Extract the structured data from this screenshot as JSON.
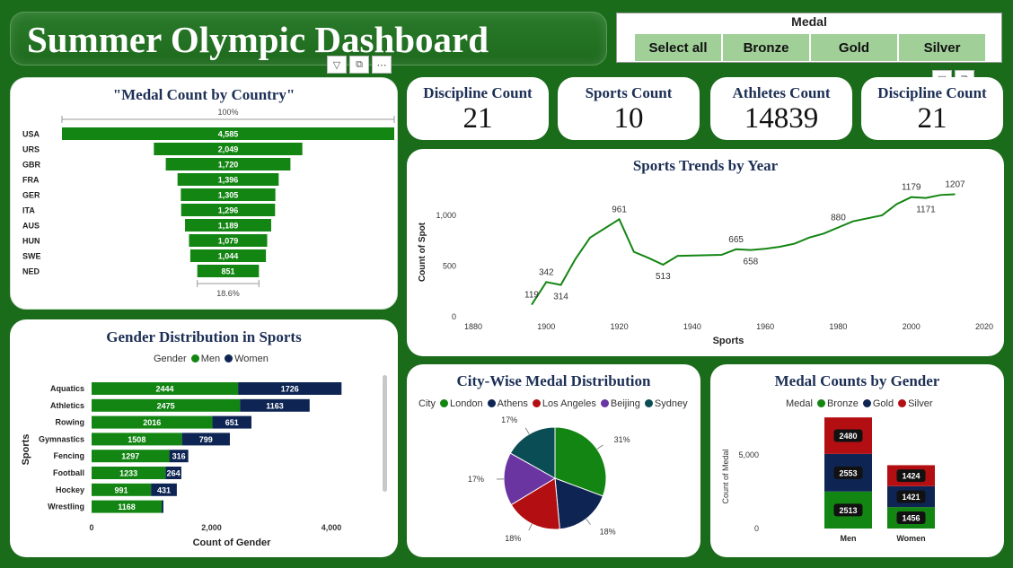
{
  "title": "Summer Olympic Dashboard",
  "slicer": {
    "title": "Medal",
    "options": [
      "Select all",
      "Bronze",
      "Gold",
      "Silver"
    ]
  },
  "kpis": [
    {
      "label": "Discipline Count",
      "value": "21"
    },
    {
      "label": "Sports Count",
      "value": "10"
    },
    {
      "label": "Athletes Count",
      "value": "14839"
    },
    {
      "label": "Discipline Count",
      "value": "21"
    }
  ],
  "colors": {
    "green": "#138513",
    "navy": "#0e2554",
    "red": "#b30f12",
    "purple": "#6a35a0",
    "teal": "#0b4d55"
  },
  "chart_data": [
    {
      "id": "funnel",
      "type": "bar",
      "title": "\"Medal Count by Country\"",
      "top_label": "100%",
      "bottom_label": "18.6%",
      "categories": [
        "USA",
        "URS",
        "GBR",
        "FRA",
        "GER",
        "ITA",
        "AUS",
        "HUN",
        "SWE",
        "NED"
      ],
      "values": [
        4585,
        2049,
        1720,
        1396,
        1305,
        1296,
        1189,
        1079,
        1044,
        851
      ],
      "value_labels": [
        "4,585",
        "2,049",
        "1,720",
        "1,396",
        "1,305",
        "1,296",
        "1,189",
        "1,079",
        "1,044",
        "851"
      ]
    },
    {
      "id": "trend",
      "type": "line",
      "title": "Sports Trends by Year",
      "xlabel": "Sports",
      "ylabel": "Count of Spot",
      "xlim": [
        1880,
        2020
      ],
      "ylim": [
        0,
        1300
      ],
      "xticks": [
        1880,
        1900,
        1920,
        1940,
        1960,
        1980,
        2000,
        2020
      ],
      "yticks": [
        0,
        500,
        1000
      ],
      "ytick_labels": [
        "0",
        "500",
        "1,000"
      ],
      "x": [
        1896,
        1900,
        1904,
        1908,
        1912,
        1920,
        1924,
        1928,
        1932,
        1936,
        1948,
        1952,
        1956,
        1960,
        1964,
        1968,
        1972,
        1976,
        1980,
        1984,
        1988,
        1992,
        1996,
        2000,
        2004,
        2008,
        2012
      ],
      "y": [
        119,
        342,
        314,
        570,
        780,
        961,
        640,
        580,
        513,
        600,
        610,
        665,
        658,
        670,
        690,
        720,
        780,
        820,
        880,
        940,
        970,
        1000,
        1110,
        1179,
        1171,
        1200,
        1207
      ],
      "annotations": [
        {
          "x": 1896,
          "y": 119,
          "label": "119"
        },
        {
          "x": 1900,
          "y": 342,
          "label": "342"
        },
        {
          "x": 1904,
          "y": 314,
          "label": "314"
        },
        {
          "x": 1920,
          "y": 961,
          "label": "961"
        },
        {
          "x": 1932,
          "y": 513,
          "label": "513"
        },
        {
          "x": 1952,
          "y": 665,
          "label": "665"
        },
        {
          "x": 1956,
          "y": 658,
          "label": "658"
        },
        {
          "x": 1980,
          "y": 880,
          "label": "880"
        },
        {
          "x": 2000,
          "y": 1179,
          "label": "1179"
        },
        {
          "x": 2004,
          "y": 1171,
          "label": "1171"
        },
        {
          "x": 2012,
          "y": 1207,
          "label": "1207"
        }
      ]
    },
    {
      "id": "gender",
      "type": "bar",
      "stacked": true,
      "orientation": "horizontal",
      "title": "Gender Distribution in Sports",
      "legend_title": "Gender",
      "xlabel": "Count of Gender",
      "ylabel": "Sports",
      "xlim": [
        0,
        4600
      ],
      "xticks": [
        0,
        2000,
        4000
      ],
      "xtick_labels": [
        "0",
        "2,000",
        "4,000"
      ],
      "categories": [
        "Aquatics",
        "Athletics",
        "Rowing",
        "Gymnastics",
        "Fencing",
        "Football",
        "Hockey",
        "Wrestling"
      ],
      "series": [
        {
          "name": "Men",
          "values": [
            2444,
            2475,
            2016,
            1508,
            1297,
            1233,
            991,
            1168
          ]
        },
        {
          "name": "Women",
          "values": [
            1726,
            1163,
            651,
            799,
            316,
            264,
            431,
            0
          ]
        }
      ]
    },
    {
      "id": "city",
      "type": "pie",
      "title": "City-Wise Medal Distribution",
      "legend_title": "City",
      "categories": [
        "London",
        "Athens",
        "Los Angeles",
        "Beijing",
        "Sydney"
      ],
      "values": [
        31,
        18,
        18,
        17,
        17
      ],
      "labels": [
        "31%",
        "18%",
        "18%",
        "17%",
        "17%"
      ]
    },
    {
      "id": "medalgender",
      "type": "bar",
      "stacked": true,
      "title": "Medal Counts by Gender",
      "legend_title": "Medal",
      "ylabel": "Count of Medal",
      "ylim": [
        0,
        7800
      ],
      "yticks": [
        0,
        5000
      ],
      "ytick_labels": [
        "0",
        "5,000"
      ],
      "categories": [
        "Men",
        "Women"
      ],
      "series": [
        {
          "name": "Bronze",
          "values": [
            2513,
            1456
          ]
        },
        {
          "name": "Gold",
          "values": [
            2553,
            1421
          ]
        },
        {
          "name": "Silver",
          "values": [
            2480,
            1424
          ]
        }
      ]
    }
  ]
}
